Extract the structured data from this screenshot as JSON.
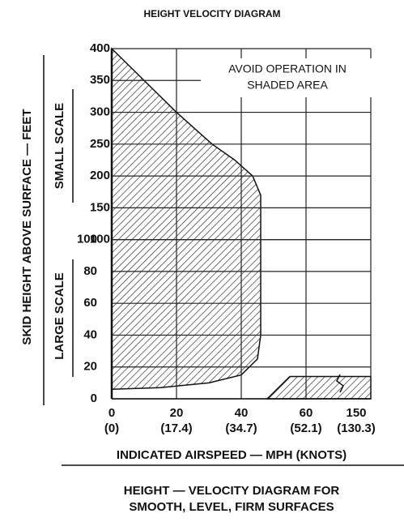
{
  "chart_data": {
    "type": "height-velocity",
    "title": "HEIGHT VELOCITY DIAGRAM",
    "annotation": [
      "AVOID OPERATION IN",
      "SHADED AREA"
    ],
    "ylabel": "SKID HEIGHT ABOVE SURFACE — FEET",
    "small_scale_label": "SMALL SCALE",
    "large_scale_label": "LARGE SCALE",
    "xlabel": "INDICATED AIRSPEED — MPH (KNOTS)",
    "caption": [
      "HEIGHT — VELOCITY DIAGRAM FOR",
      "SMOOTH, LEVEL, FIRM SURFACES"
    ],
    "xlim": [
      0,
      150
    ],
    "ylim": [
      0,
      400
    ],
    "xticks": [
      0,
      20,
      40,
      60,
      150
    ],
    "xtick_knots": [
      "(0)",
      "(17.4)",
      "(34.7)",
      "(52.1)",
      "(130.3)"
    ],
    "yticks_large": [
      0,
      20,
      40,
      60,
      80,
      100
    ],
    "yticks_small": [
      100,
      150,
      200,
      250,
      300,
      350,
      400
    ],
    "grid": true,
    "regions": [
      {
        "x": [
          0,
          10,
          20,
          31,
          38,
          43.5,
          46,
          46,
          45,
          40,
          30,
          15,
          0
        ],
        "y": [
          400,
          350,
          300,
          250,
          225,
          200,
          170,
          40,
          25,
          15,
          10,
          7,
          6
        ]
      },
      {
        "x": [
          48,
          55,
          150,
          150
        ],
        "y": [
          0,
          14,
          14,
          0
        ]
      }
    ]
  }
}
